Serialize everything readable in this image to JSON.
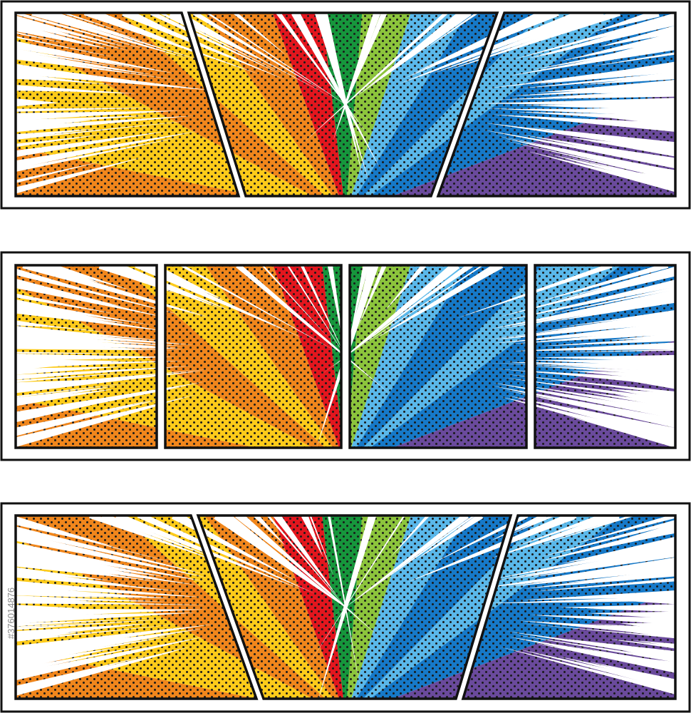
{
  "watermark": "#376014876"
}
